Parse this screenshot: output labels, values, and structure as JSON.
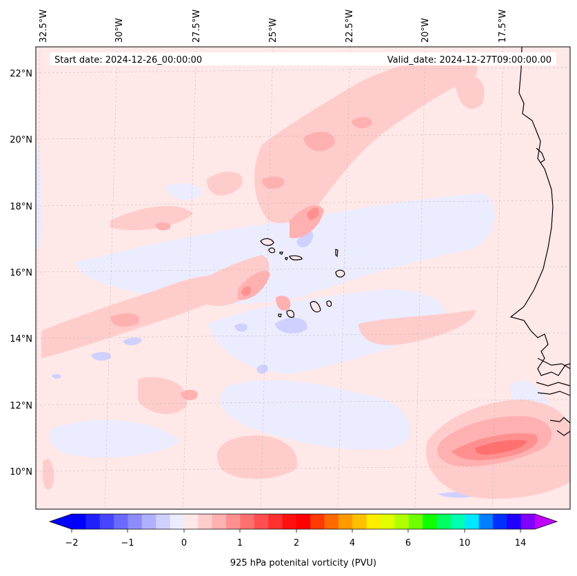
{
  "map": {
    "lon_labels": [
      "32.5°W",
      "30°W",
      "27.5°W",
      "25°W",
      "22.5°W",
      "20°W",
      "17.5°W"
    ],
    "lat_labels": [
      "22°N",
      "20°N",
      "18°N",
      "16°N",
      "14°N",
      "12°N",
      "10°N"
    ],
    "start_label": "Start date: 2024-12-26_00:00:00",
    "valid_label": "Valid_date: 2024-12-27T09:00:00.00",
    "background_color": "#fee8e8"
  },
  "colorbar": {
    "title": "925 hPa potenital vorticity (PVU)",
    "tick_labels": [
      "−2",
      "−1",
      "0",
      "1",
      "2",
      "4",
      "6",
      "10",
      "14"
    ],
    "colors": [
      "#0000ff",
      "#2020ff",
      "#4646ff",
      "#6a6aff",
      "#8c8cff",
      "#b0b0ff",
      "#d0d0ff",
      "#ececff",
      "#ffe8e8",
      "#ffcccc",
      "#ffb0b0",
      "#ff9090",
      "#ff7070",
      "#ff5050",
      "#ff3030",
      "#ff1010",
      "#ff0000",
      "#ff3a00",
      "#ff6a00",
      "#ff9a00",
      "#ffc000",
      "#ffec00",
      "#e0ff00",
      "#b0ff00",
      "#70ff00",
      "#10ff00",
      "#00ff60",
      "#00ffb0",
      "#00e8ff",
      "#0080ff",
      "#0030ff",
      "#2000ff",
      "#8000ff"
    ],
    "under_color": "#0000ff",
    "over_color": "#c000ff"
  }
}
